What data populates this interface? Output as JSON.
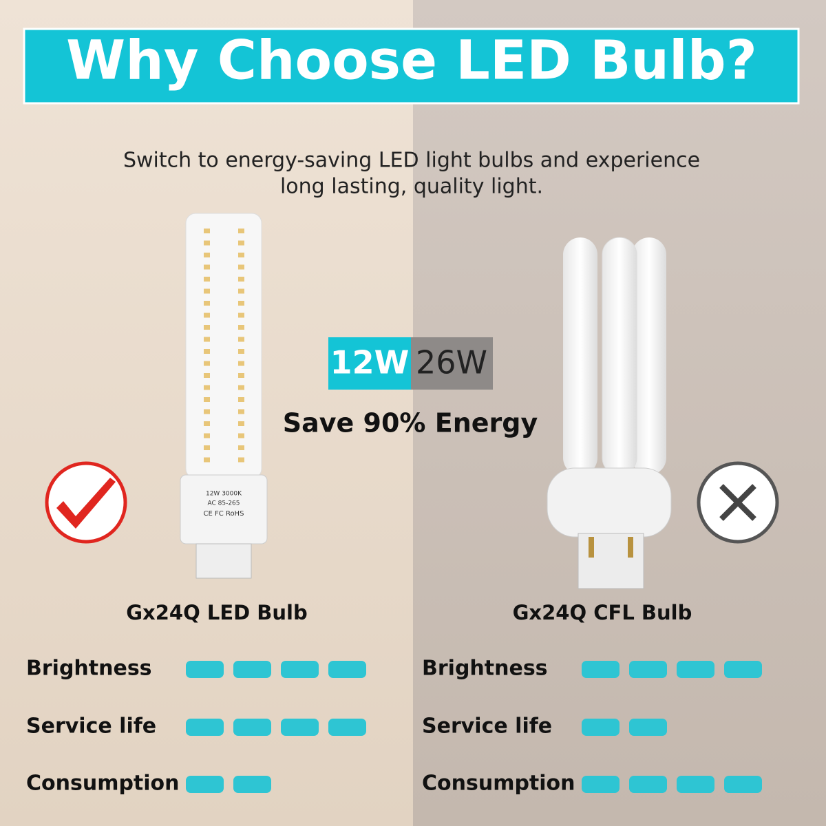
{
  "header": {
    "title": "Why Choose LED Bulb?",
    "subtitle_lines": [
      "Switch to energy-saving LED light bulbs and experience",
      "long lasting, quality light."
    ]
  },
  "wattage": {
    "led": "12W",
    "cfl": "26W",
    "saving": "Save 90% Energy"
  },
  "bulb_label": [
    "12W 3000K",
    "AC 85-265",
    "CE FC RoHS"
  ],
  "products": [
    {
      "name": "Gx24Q LED  Bulb",
      "ratings": [
        {
          "label": "Brightness",
          "value": 4
        },
        {
          "label": "Service life",
          "value": 4
        },
        {
          "label": "Consumption",
          "value": 2
        }
      ]
    },
    {
      "name": "Gx24Q CFL Bulb",
      "ratings": [
        {
          "label": "Brightness",
          "value": 4
        },
        {
          "label": "Service life",
          "value": 2
        },
        {
          "label": "Consumption",
          "value": 4
        }
      ]
    }
  ]
}
